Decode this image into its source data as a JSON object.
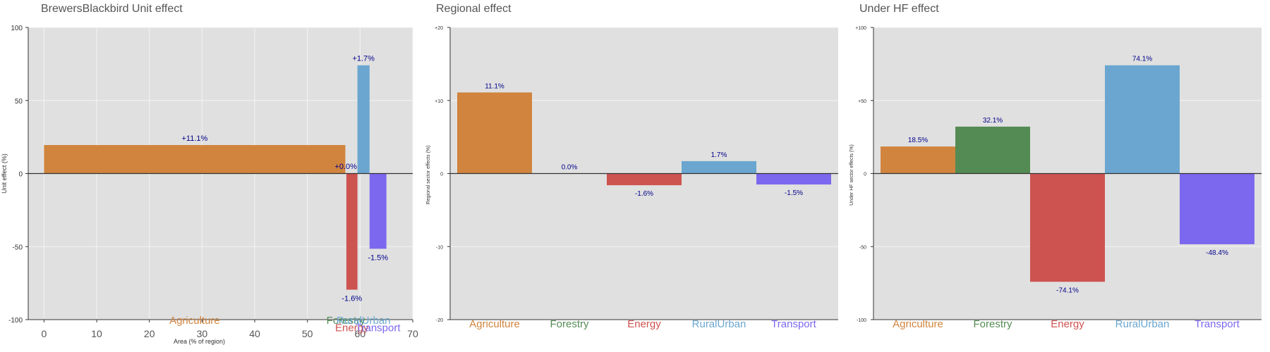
{
  "colors": {
    "Agriculture": "#d0843e",
    "Forestry": "#548b54",
    "Energy": "#cd5350",
    "RuralUrban": "#6aa6cf",
    "Transport": "#7b68ee",
    "panel_bg": "#e0e0e0",
    "value_label": "#00008b",
    "tick_label": "#333333"
  },
  "chart_data": [
    {
      "type": "bar",
      "variant": "area-width",
      "title": "BrewersBlackbird Unit effect",
      "xlabel": "Area (% of region)",
      "ylabel": "Unit effect (%)",
      "xlim": [
        -3,
        70
      ],
      "ylim": [
        -100,
        100
      ],
      "xticks": [
        "0",
        "10",
        "20",
        "30",
        "40",
        "50",
        "60",
        "70"
      ],
      "xtick_values": [
        0,
        10,
        20,
        30,
        40,
        50,
        60,
        70
      ],
      "yticks": [
        "100",
        "50",
        "0",
        "-50",
        "-100"
      ],
      "ytick_values": [
        100,
        50,
        0,
        -50,
        -100
      ],
      "grid": true,
      "bars": [
        {
          "sector": "Agriculture",
          "x0": 0,
          "x1": 57.2,
          "value": 19.5,
          "label": "+11.1%",
          "name_y": -103
        },
        {
          "sector": "Forestry",
          "x0": 57.2,
          "x1": 57.4,
          "value": 0.3,
          "label": "+0.0%",
          "name_y": -103
        },
        {
          "sector": "Energy",
          "x0": 57.4,
          "x1": 59.5,
          "value": -79.5,
          "label": "-1.6%",
          "name_y": -108
        },
        {
          "sector": "RuralUrban",
          "x0": 59.5,
          "x1": 61.8,
          "value": 74.1,
          "label": "+1.7%",
          "name_y": -103
        },
        {
          "sector": "Transport",
          "x0": 61.8,
          "x1": 65.0,
          "value": -51.5,
          "label": "-1.5%",
          "name_y": -108
        }
      ]
    },
    {
      "type": "bar",
      "title": "Regional effect",
      "ylabel": "Regional sector effects (%)",
      "ylim": [
        -20,
        20
      ],
      "yticks": [
        "+20",
        "+10",
        "0",
        "-10",
        "-20"
      ],
      "ytick_values": [
        20,
        10,
        0,
        -10,
        -20
      ],
      "grid": true,
      "categories": [
        "Agriculture",
        "Forestry",
        "Energy",
        "RuralUrban",
        "Transport"
      ],
      "values": [
        11.1,
        0.0,
        -1.6,
        1.7,
        -1.5
      ],
      "labels": [
        "11.1%",
        "0.0%",
        "-1.6%",
        "1.7%",
        "-1.5%"
      ]
    },
    {
      "type": "bar",
      "title": "Under HF effect",
      "ylabel": "Under HF sector effects (%)",
      "ylim": [
        -100,
        100
      ],
      "yticks": [
        "+100",
        "+50",
        "0",
        "-50",
        "-100"
      ],
      "ytick_values": [
        100,
        50,
        0,
        -50,
        -100
      ],
      "grid": true,
      "categories": [
        "Agriculture",
        "Forestry",
        "Energy",
        "RuralUrban",
        "Transport"
      ],
      "values": [
        18.5,
        32.1,
        -74.1,
        74.1,
        -48.4
      ],
      "labels": [
        "18.5%",
        "32.1%",
        "-74.1%",
        "74.1%",
        "-48.4%"
      ]
    }
  ]
}
